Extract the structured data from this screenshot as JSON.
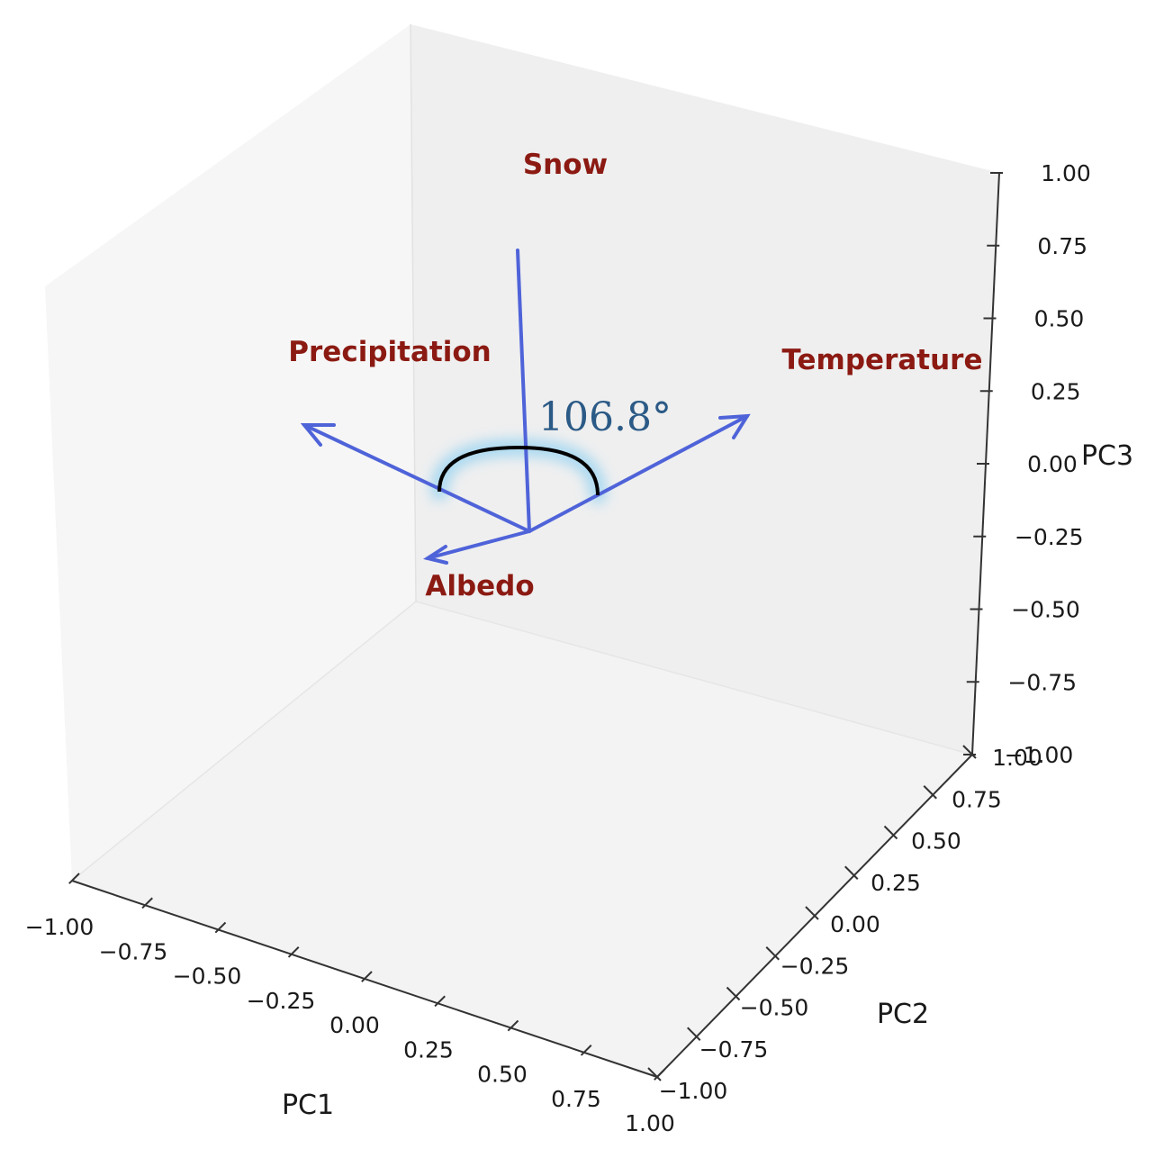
{
  "chart_data": {
    "type": "3d-vector",
    "axes": {
      "x": {
        "label": "PC1",
        "ticks": [
          "−1.00",
          "−0.75",
          "−0.50",
          "−0.25",
          "0.00",
          "0.25",
          "0.50",
          "0.75",
          "1.00"
        ],
        "lim": [
          -1,
          1
        ]
      },
      "y": {
        "label": "PC2",
        "ticks": [
          "−1.00",
          "−0.75",
          "−0.50",
          "−0.25",
          "0.00",
          "0.25",
          "0.50",
          "0.75",
          "1.00"
        ],
        "lim": [
          -1,
          1
        ]
      },
      "z": {
        "label": "PC3",
        "ticks": [
          "−1.00",
          "−0.75",
          "−0.50",
          "−0.25",
          "0.00",
          "0.25",
          "0.50",
          "0.75",
          "1.00"
        ],
        "lim": [
          -1,
          1
        ]
      }
    },
    "vectors": [
      {
        "name": "Snow",
        "arrowhead": false
      },
      {
        "name": "Precipitation",
        "arrowhead": true
      },
      {
        "name": "Temperature",
        "arrowhead": true
      },
      {
        "name": "Albedo",
        "arrowhead": true
      }
    ],
    "annotation": {
      "text": "106.8°",
      "angle_deg": 106.8
    },
    "colors": {
      "vector": "#4f63d9",
      "label": "#8b1a12",
      "annotation": "#2b5a86",
      "pane_left": "#f5f5f5",
      "pane_right": "#efefef",
      "pane_floor": "#f2f2f2"
    }
  }
}
